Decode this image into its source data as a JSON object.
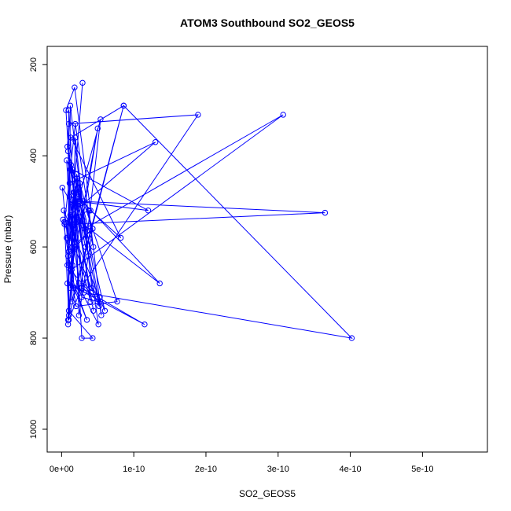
{
  "chart_data": {
    "type": "line",
    "title": "ATOM3 Southbound SO2_GEOS5",
    "xlabel": "SO2_GEOS5",
    "ylabel": "Pressure (mbar)",
    "xlim": [
      -2e-11,
      5.9e-10
    ],
    "ylim": [
      1050,
      160
    ],
    "y_reversed": true,
    "grid": false,
    "line_color": "#0000ff",
    "marker": "open-circle",
    "x_ticks": [
      0,
      1e-10,
      2e-10,
      3e-10,
      4e-10,
      5e-10
    ],
    "x_tick_labels": [
      "0e+00",
      "1e-10",
      "2e-10",
      "3e-10",
      "4e-10",
      "5e-10"
    ],
    "y_ticks": [
      200,
      400,
      600,
      800,
      1000
    ],
    "y_tick_labels": [
      "200",
      "400",
      "600",
      "800",
      "1000"
    ],
    "series": [
      {
        "x": [
          9e-12,
          1e-11,
          2.8e-11,
          4.3e-11,
          1e-11,
          1.2e-11,
          3.7e-11,
          2.2e-11,
          7e-12,
          1.5e-11,
          5e-11,
          2.9e-11,
          1.6e-11,
          6e-12,
          1.8e-11,
          4e-11,
          8.2e-11,
          1.3e-11,
          8.6e-11,
          1.4e-11,
          2e-11,
          5.2e-11,
          4e-12,
          1.9e-11,
          4.4e-11,
          9e-12,
          1.7e-11,
          3.5e-11,
          8e-12,
          1.1e-11,
          1.3e-10,
          1.2e-11,
          2.5e-11,
          5.1e-11,
          2.1e-11,
          1.1e-11,
          3e-12,
          6e-11,
          1.5e-11,
          1.2e-10,
          2.3e-11,
          1e-11,
          3e-11,
          5.3e-11,
          4.2e-11,
          1.9e-11,
          1.4e-11,
          3.07e-10,
          3.2e-11,
          1.8e-11,
          2.4e-11,
          4.3e-11,
          1.5e-11,
          9e-12,
          2.8e-11,
          5e-11,
          1.2e-11,
          2.6e-11,
          3.65e-10,
          1.6e-11,
          2e-12,
          2e-11,
          7.7e-11,
          3e-11,
          1.1e-11,
          7e-12,
          1.7e-11,
          1.36e-10,
          2.2e-11,
          4.4e-11,
          1.2e-11,
          3.3e-11,
          2e-11,
          8e-12,
          1e-11,
          1.89e-10,
          2.7e-11,
          5.4e-11,
          1.4e-11,
          4e-11,
          2.2e-11,
          9e-12,
          8.6e-11,
          4.02e-10,
          3.1e-11,
          1.3e-11,
          2.8e-11,
          1.15e-10,
          8e-12,
          1.9e-11,
          4.3e-11,
          2.5e-11,
          1e-11,
          4e-12,
          3.8e-11,
          5.5e-11,
          2.1e-11,
          1.2e-11,
          1.6e-11,
          1e-12,
          1e-11,
          2.9e-11
        ],
        "y": [
          770,
          300,
          800,
          800,
          740,
          290,
          620,
          470,
          410,
          640,
          340,
          540,
          560,
          300,
          250,
          520,
          580,
          360,
          290,
          720,
          480,
          730,
          550,
          330,
          600,
          390,
          690,
          760,
          640,
          460,
          370,
          530,
          690,
          770,
          450,
          590,
          520,
          740,
          430,
          520,
          500,
          760,
          680,
          710,
          690,
          360,
          650,
          310,
          560,
          480,
          750,
          560,
          600,
          620,
          710,
          720,
          650,
          500,
          525,
          550,
          540,
          730,
          720,
          500,
          490,
          580,
          480,
          680,
          540,
          740,
          430,
          600,
          500,
          380,
          330,
          310,
          690,
          320,
          550,
          720,
          510,
          760,
          290,
          800,
          700,
          420,
          690,
          770,
          680,
          600,
          560,
          460,
          750,
          545,
          520,
          750,
          440,
          690,
          510,
          470,
          610,
          240
        ]
      }
    ]
  }
}
